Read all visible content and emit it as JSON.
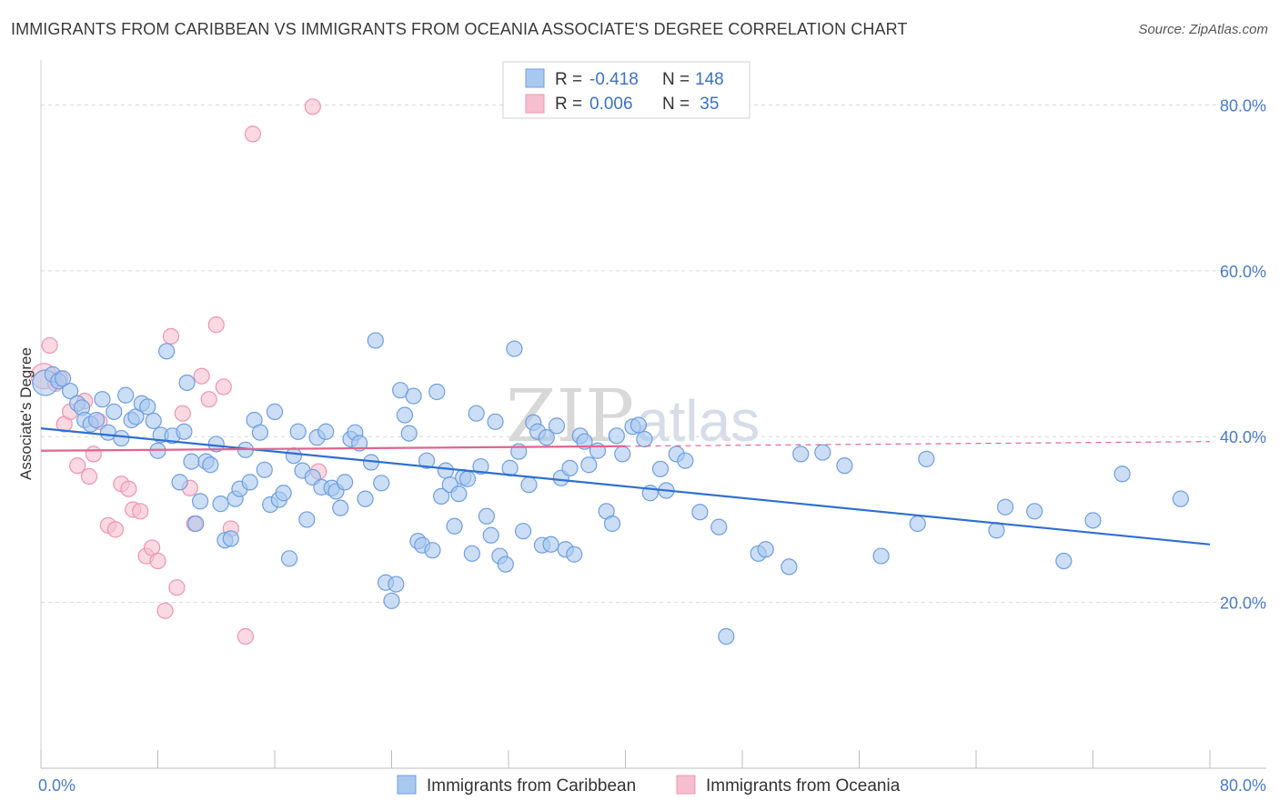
{
  "header": {
    "title": "IMMIGRANTS FROM CARIBBEAN VS IMMIGRANTS FROM OCEANIA ASSOCIATE'S DEGREE CORRELATION CHART",
    "source": "Source: ZipAtlas.com"
  },
  "watermark": {
    "part1": "ZIP",
    "part2": "atlas"
  },
  "legend_box": {
    "rows": [
      {
        "r_label": "R = ",
        "r_value": "-0.418",
        "n_label": "N = ",
        "n_value": "148"
      },
      {
        "r_label": "R = ",
        "r_value": "0.006",
        "n_label": "N = ",
        "n_value": " 35"
      }
    ]
  },
  "colors": {
    "caribbean_fill": "#a9c8f0",
    "caribbean_stroke": "#6f9ee0",
    "caribbean_line": "#2f6fd0",
    "oceania_fill": "#f6bfd0",
    "oceania_stroke": "#ee94b2",
    "oceania_line": "#e0658f",
    "grid": "#d9d9d9",
    "tick_text": "#4a7cc9"
  },
  "chart_data": {
    "type": "scatter",
    "title": "IMMIGRANTS FROM CARIBBEAN VS IMMIGRANTS FROM OCEANIA ASSOCIATE'S DEGREE CORRELATION CHART",
    "xlabel": "",
    "ylabel": "Associate's Degree",
    "xlim": [
      0,
      80
    ],
    "ylim": [
      0,
      84
    ],
    "x_tick_labels": [
      "0.0%",
      "80.0%"
    ],
    "y_ticks": [
      20,
      40,
      60,
      80
    ],
    "y_tick_labels": [
      "20.0%",
      "40.0%",
      "60.0%",
      "80.0%"
    ],
    "grid": true,
    "legend_position": "bottom",
    "series": [
      {
        "name": "Immigrants from Caribbean",
        "R": -0.418,
        "N": 148,
        "trend": {
          "x": [
            0,
            80
          ],
          "y": [
            41.0,
            27.0
          ]
        },
        "points": [
          [
            0.3,
            46.5
          ],
          [
            0.8,
            47.5
          ],
          [
            1.2,
            46.7
          ],
          [
            1.5,
            47.0
          ],
          [
            2.0,
            45.5
          ],
          [
            2.5,
            44.0
          ],
          [
            2.8,
            43.5
          ],
          [
            3.0,
            42.0
          ],
          [
            3.4,
            41.5
          ],
          [
            3.8,
            42.0
          ],
          [
            4.2,
            44.5
          ],
          [
            4.6,
            40.5
          ],
          [
            5.0,
            43.0
          ],
          [
            5.5,
            39.8
          ],
          [
            5.8,
            45.0
          ],
          [
            6.2,
            42.0
          ],
          [
            6.5,
            42.4
          ],
          [
            6.9,
            44.0
          ],
          [
            7.3,
            43.6
          ],
          [
            7.7,
            41.9
          ],
          [
            8.0,
            38.3
          ],
          [
            8.2,
            40.2
          ],
          [
            8.6,
            50.3
          ],
          [
            9.0,
            40.1
          ],
          [
            9.5,
            34.5
          ],
          [
            9.8,
            40.6
          ],
          [
            10.0,
            46.5
          ],
          [
            10.3,
            37.0
          ],
          [
            10.6,
            29.5
          ],
          [
            10.9,
            32.2
          ],
          [
            11.3,
            37.0
          ],
          [
            11.6,
            36.6
          ],
          [
            12.0,
            39.1
          ],
          [
            12.3,
            31.9
          ],
          [
            12.6,
            27.5
          ],
          [
            13.0,
            27.7
          ],
          [
            13.3,
            32.5
          ],
          [
            13.6,
            33.7
          ],
          [
            14.0,
            38.4
          ],
          [
            14.3,
            34.5
          ],
          [
            14.6,
            42.0
          ],
          [
            15.0,
            40.5
          ],
          [
            15.3,
            36.0
          ],
          [
            15.7,
            31.8
          ],
          [
            16.0,
            43.0
          ],
          [
            16.3,
            32.4
          ],
          [
            16.6,
            33.2
          ],
          [
            17.0,
            25.3
          ],
          [
            17.3,
            37.7
          ],
          [
            17.6,
            40.6
          ],
          [
            17.9,
            35.9
          ],
          [
            18.2,
            30.0
          ],
          [
            18.6,
            35.1
          ],
          [
            18.9,
            39.9
          ],
          [
            19.2,
            33.9
          ],
          [
            19.5,
            40.6
          ],
          [
            19.9,
            33.8
          ],
          [
            20.2,
            33.4
          ],
          [
            20.5,
            31.4
          ],
          [
            20.8,
            34.5
          ],
          [
            21.2,
            39.7
          ],
          [
            21.5,
            40.5
          ],
          [
            21.8,
            39.2
          ],
          [
            22.2,
            32.5
          ],
          [
            22.6,
            36.9
          ],
          [
            22.9,
            51.6
          ],
          [
            23.3,
            34.4
          ],
          [
            23.6,
            22.4
          ],
          [
            24.0,
            20.2
          ],
          [
            24.3,
            22.2
          ],
          [
            24.6,
            45.6
          ],
          [
            24.9,
            42.6
          ],
          [
            25.2,
            40.4
          ],
          [
            25.5,
            44.9
          ],
          [
            25.8,
            27.4
          ],
          [
            26.1,
            26.9
          ],
          [
            26.4,
            37.1
          ],
          [
            26.8,
            26.3
          ],
          [
            27.1,
            45.4
          ],
          [
            27.4,
            32.8
          ],
          [
            27.7,
            35.9
          ],
          [
            28.0,
            34.2
          ],
          [
            28.3,
            29.2
          ],
          [
            28.6,
            33.1
          ],
          [
            28.9,
            35.1
          ],
          [
            29.2,
            34.9
          ],
          [
            29.5,
            25.9
          ],
          [
            29.8,
            42.8
          ],
          [
            30.1,
            36.4
          ],
          [
            30.5,
            30.4
          ],
          [
            30.8,
            28.1
          ],
          [
            31.1,
            41.8
          ],
          [
            31.4,
            25.6
          ],
          [
            31.8,
            24.6
          ],
          [
            32.1,
            36.2
          ],
          [
            32.4,
            50.6
          ],
          [
            32.7,
            38.2
          ],
          [
            33.0,
            28.6
          ],
          [
            33.4,
            34.2
          ],
          [
            33.7,
            41.7
          ],
          [
            34.0,
            40.6
          ],
          [
            34.3,
            26.9
          ],
          [
            34.6,
            39.9
          ],
          [
            34.9,
            27.0
          ],
          [
            35.3,
            41.3
          ],
          [
            35.6,
            35.0
          ],
          [
            35.9,
            26.4
          ],
          [
            36.2,
            36.2
          ],
          [
            36.5,
            25.8
          ],
          [
            36.9,
            40.1
          ],
          [
            37.2,
            39.4
          ],
          [
            37.5,
            36.6
          ],
          [
            38.1,
            38.3
          ],
          [
            38.7,
            31.0
          ],
          [
            39.1,
            29.5
          ],
          [
            39.4,
            40.1
          ],
          [
            39.8,
            37.9
          ],
          [
            40.5,
            41.2
          ],
          [
            40.9,
            41.4
          ],
          [
            41.3,
            39.7
          ],
          [
            41.7,
            33.2
          ],
          [
            42.4,
            36.1
          ],
          [
            42.8,
            33.5
          ],
          [
            43.5,
            37.9
          ],
          [
            44.1,
            37.1
          ],
          [
            45.1,
            30.9
          ],
          [
            46.4,
            29.1
          ],
          [
            46.9,
            15.9
          ],
          [
            49.1,
            25.9
          ],
          [
            49.6,
            26.4
          ],
          [
            51.2,
            24.3
          ],
          [
            52.0,
            37.9
          ],
          [
            53.5,
            38.1
          ],
          [
            55.0,
            36.5
          ],
          [
            57.5,
            25.6
          ],
          [
            60.0,
            29.5
          ],
          [
            60.6,
            37.3
          ],
          [
            65.4,
            28.7
          ],
          [
            66.0,
            31.5
          ],
          [
            68.0,
            31.0
          ],
          [
            70.0,
            25.0
          ],
          [
            72.0,
            29.9
          ],
          [
            74.0,
            35.5
          ],
          [
            78.0,
            32.5
          ]
        ]
      },
      {
        "name": "Immigrants from Oceania",
        "R": 0.006,
        "N": 35,
        "trend": {
          "x": [
            0,
            80
          ],
          "y": [
            38.3,
            39.4
          ]
        },
        "points": [
          [
            0.2,
            47.3
          ],
          [
            0.6,
            51.0
          ],
          [
            1.0,
            46.4
          ],
          [
            1.3,
            47.0
          ],
          [
            1.6,
            41.5
          ],
          [
            2.0,
            43.0
          ],
          [
            2.5,
            36.5
          ],
          [
            3.0,
            44.3
          ],
          [
            3.3,
            35.2
          ],
          [
            3.6,
            37.9
          ],
          [
            4.0,
            41.8
          ],
          [
            4.6,
            29.3
          ],
          [
            5.1,
            28.8
          ],
          [
            5.5,
            34.3
          ],
          [
            6.0,
            33.7
          ],
          [
            6.3,
            31.2
          ],
          [
            6.8,
            31.0
          ],
          [
            7.2,
            25.6
          ],
          [
            7.6,
            26.6
          ],
          [
            8.0,
            25.0
          ],
          [
            8.5,
            19.0
          ],
          [
            8.9,
            52.1
          ],
          [
            9.3,
            21.8
          ],
          [
            9.7,
            42.8
          ],
          [
            10.2,
            33.8
          ],
          [
            10.5,
            29.5
          ],
          [
            11.0,
            47.3
          ],
          [
            11.5,
            44.5
          ],
          [
            12.0,
            53.5
          ],
          [
            12.5,
            46.0
          ],
          [
            13.0,
            28.9
          ],
          [
            14.0,
            15.9
          ],
          [
            14.5,
            76.5
          ],
          [
            18.6,
            79.8
          ],
          [
            19.0,
            35.8
          ]
        ]
      }
    ]
  },
  "bottom_legend": {
    "items": [
      "Immigrants from Caribbean",
      "Immigrants from Oceania"
    ]
  }
}
